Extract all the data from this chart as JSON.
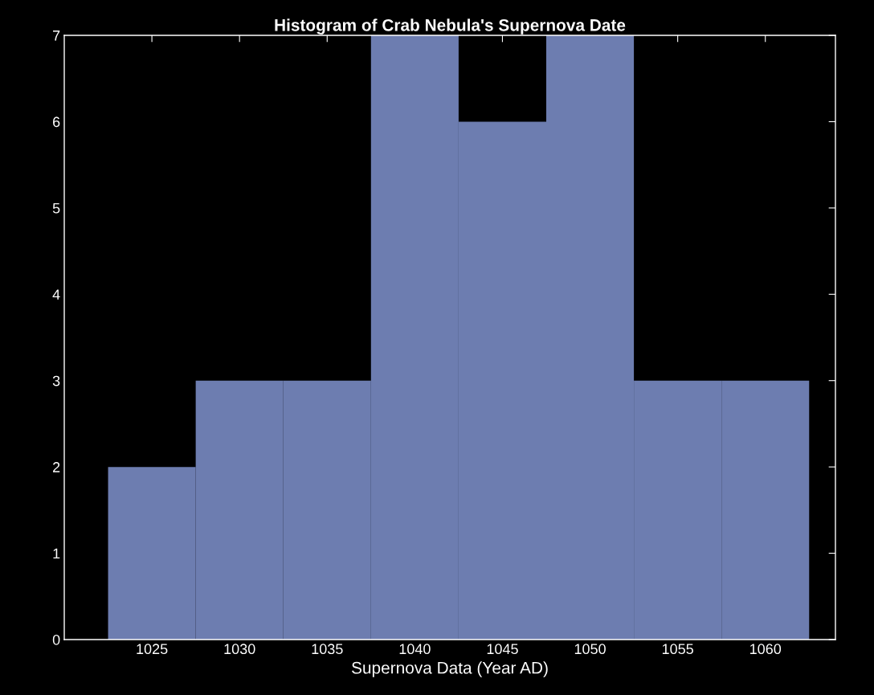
{
  "chart_data": {
    "type": "histogram",
    "title": "Histogram of Crab Nebula's Supernova Date",
    "xlabel": "Supernova Data (Year AD)",
    "bins": [
      1022.5,
      1027.5,
      1032.5,
      1037.5,
      1042.5,
      1047.5,
      1052.5,
      1057.5,
      1062.5
    ],
    "values": [
      2,
      3,
      3,
      7,
      6,
      7,
      3,
      3
    ],
    "color": "#6d7db0",
    "xlim": [
      1020,
      1064
    ],
    "xticks": [
      1025,
      1030,
      1035,
      1040,
      1045,
      1050,
      1055,
      1060
    ],
    "ylim": [
      0,
      7
    ],
    "yticks": [
      0,
      1,
      2,
      3,
      4,
      5,
      6,
      7
    ],
    "grid": false
  }
}
